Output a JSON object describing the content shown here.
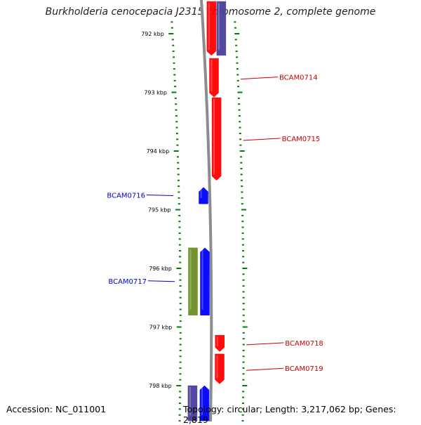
{
  "title": "Burkholderia cenocepacia J2315 chromosome 2, complete genome",
  "footer": {
    "accession": "Accession: NC_011001",
    "topology": "Topology: circular; Length: 3,217,062 bp; Genes: 2,819"
  },
  "colors": {
    "forward_strand": "#ff0000",
    "reverse_strand": "#0000ff",
    "forward_faded": "#4a3f9a",
    "feature_green": "#6b8e23",
    "backbone": "#8c8c8c",
    "ticks": "#008000",
    "forward_label": "#cc0000",
    "reverse_label": "#0000cc"
  },
  "ticks": [
    {
      "label": "792 kbp",
      "kbp": 792
    },
    {
      "label": "793 kbp",
      "kbp": 793
    },
    {
      "label": "794 kbp",
      "kbp": 794
    },
    {
      "label": "795 kbp",
      "kbp": 795
    },
    {
      "label": "796 kbp",
      "kbp": 796
    },
    {
      "label": "797 kbp",
      "kbp": 797
    },
    {
      "label": "798 kbp",
      "kbp": 798
    }
  ],
  "genes": [
    {
      "label": "",
      "strand": "forward",
      "color": "#ff0000",
      "start_kbp": 791.45,
      "end_kbp": 792.37
    },
    {
      "label": "",
      "strand": "reverse_outer",
      "color": "#4a3f9a",
      "start_kbp": 791.45,
      "end_kbp": 792.37
    },
    {
      "label": "BCAM0714",
      "strand": "forward",
      "color": "#ff0000",
      "start_kbp": 792.42,
      "end_kbp": 793.08
    },
    {
      "label": "BCAM0715",
      "strand": "forward",
      "color": "#ff0000",
      "start_kbp": 793.09,
      "end_kbp": 794.5
    },
    {
      "label": "BCAM0716",
      "strand": "reverse",
      "color": "#0000ff",
      "start_kbp": 794.62,
      "end_kbp": 794.9
    },
    {
      "label": "",
      "strand": "reverse_outer",
      "color": "#6b8e23",
      "start_kbp": 795.65,
      "end_kbp": 796.8
    },
    {
      "label": "BCAM0717",
      "strand": "reverse",
      "color": "#0000ff",
      "start_kbp": 795.65,
      "end_kbp": 796.8
    },
    {
      "label": "BCAM0718",
      "strand": "forward",
      "color": "#ff0000",
      "start_kbp": 797.14,
      "end_kbp": 797.42
    },
    {
      "label": "BCAM0719",
      "strand": "forward",
      "color": "#ff0000",
      "start_kbp": 797.46,
      "end_kbp": 797.97
    },
    {
      "label": "",
      "strand": "reverse_outer",
      "color": "#4a3f9a",
      "start_kbp": 798.0,
      "end_kbp": 798.6
    },
    {
      "label": "",
      "strand": "reverse",
      "color": "#0000ff",
      "start_kbp": 798.0,
      "end_kbp": 798.6
    }
  ]
}
